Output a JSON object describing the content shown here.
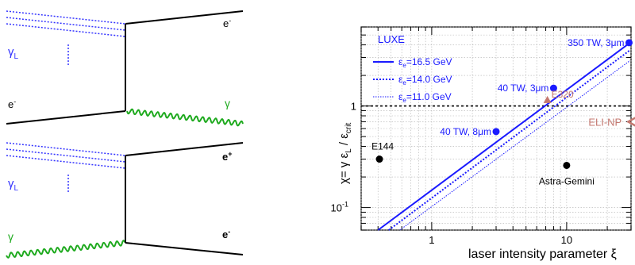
{
  "diagrams": {
    "top": {
      "photon_label": "γ",
      "photon_label_sub": "L",
      "electron_in_label": "e",
      "electron_in_sup": "-",
      "electron_out_label": "e",
      "electron_out_sup": "-",
      "photon_out_label": "γ"
    },
    "bottom": {
      "photon_label": "γ",
      "photon_label_sub": "L",
      "photon_in_label": "γ",
      "positron_label": "e",
      "positron_sup": "+",
      "electron_label": "e",
      "electron_sup": "-"
    },
    "colors": {
      "laser": "#3333ff",
      "gamma": "#1faa1f",
      "fermion": "#000000"
    }
  },
  "chart_data": {
    "type": "line",
    "xscale": "log",
    "yscale": "log",
    "xlim": [
      0.3,
      30
    ],
    "ylim": [
      0.06,
      6
    ],
    "grid": true,
    "xlabel": "laser intensity parameter ξ",
    "ylabel": {
      "main": "χ= γ ε",
      "sub_L": "L",
      "slash": " / ε",
      "sub_crit": "crit"
    },
    "x_ticks": [
      {
        "value": 1,
        "label": "1"
      },
      {
        "value": 10,
        "label": "10"
      }
    ],
    "y_ticks": [
      {
        "value": 0.1,
        "label": "10",
        "exp": "-1"
      },
      {
        "value": 1,
        "label": "1"
      }
    ],
    "legend_position": "top-left",
    "legend_title": "LUXE",
    "reference_line": {
      "y": 1,
      "style": "dashed"
    },
    "series": [
      {
        "name": "ε",
        "name_sub": "e",
        "name_rest": "=16.5 GeV",
        "style": "solid",
        "x": [
          0.4,
          29.5
        ],
        "y": [
          0.06,
          4.2
        ]
      },
      {
        "name": "ε",
        "name_sub": "e",
        "name_rest": "=14.0 GeV",
        "style": "dotted",
        "x": [
          0.48,
          29.5
        ],
        "y": [
          0.06,
          3.55
        ]
      },
      {
        "name": "ε",
        "name_sub": "e",
        "name_rest": "=11.0 GeV",
        "style": "dotted-thin",
        "x": [
          0.58,
          29.5
        ],
        "y": [
          0.06,
          2.8
        ]
      }
    ],
    "points": [
      {
        "label": "40 TW, 8μm",
        "x": 3.0,
        "y": 0.56,
        "color": "#1a1aff",
        "anchor": "left"
      },
      {
        "label": "40 TW, 3μm",
        "x": 8.0,
        "y": 1.5,
        "color": "#1a1aff",
        "anchor": "left"
      },
      {
        "label": "350 TW, 3μm",
        "x": 29.0,
        "y": 4.2,
        "color": "#1a1aff",
        "anchor": "left"
      },
      {
        "label": "E144",
        "x": 0.41,
        "y": 0.3,
        "color": "#000000",
        "anchor": "above"
      },
      {
        "label": "Astra-Gemini",
        "x": 10.0,
        "y": 0.26,
        "color": "#000000",
        "anchor": "below"
      }
    ],
    "annotations": [
      {
        "label": "E320",
        "x": 7.2,
        "y": 1.15,
        "color": "#c47870",
        "marker": "triangle"
      },
      {
        "label": "ELI-NP",
        "x": 14.5,
        "y": 0.7,
        "color": "#c47870",
        "marker": "arrow"
      }
    ],
    "colors": {
      "series": "#1a1aff",
      "grid": "#b0b0b0"
    }
  }
}
